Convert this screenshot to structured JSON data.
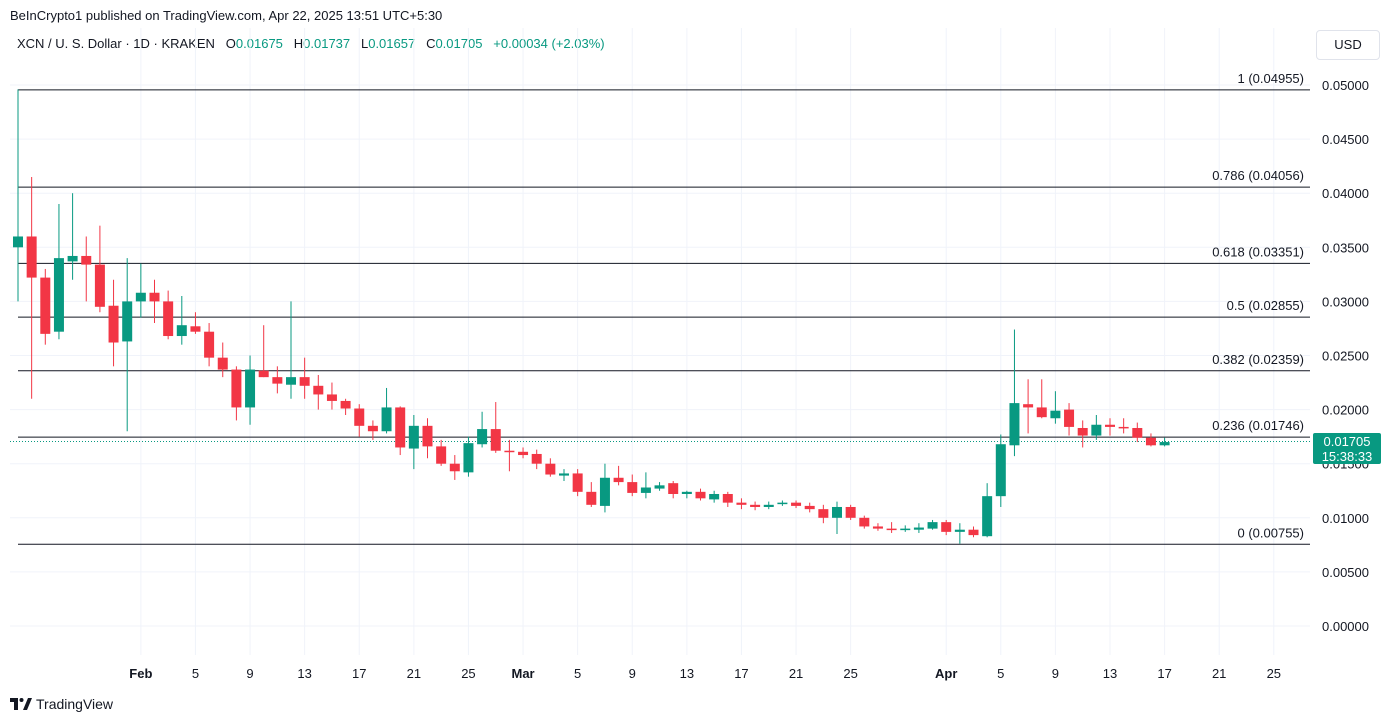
{
  "header": {
    "publisher_line": "BeInCrypto1 published on TradingView.com, Apr 22, 2025 13:51 UTC+5:30",
    "symbol": "XCN / U. S. Dollar · 1D · KRAKEN",
    "open_label": "O",
    "open": "0.01675",
    "high_label": "H",
    "high": "0.01737",
    "low_label": "L",
    "low": "0.01657",
    "close_label": "C",
    "close": "0.01705",
    "change": "+0.00034 (+2.03%)",
    "currency": "USD"
  },
  "last_price": {
    "value": "0.01705",
    "countdown": "15:38:33"
  },
  "branding": {
    "logo_icon": "tradingview-logo-icon",
    "name": "TradingView"
  },
  "colors": {
    "up": "#089981",
    "down": "#f23645",
    "line": "#131722",
    "grid": "#f0f3fa"
  },
  "chart_data": {
    "type": "candlestick",
    "ylim": [
      -0.0025,
      0.0525
    ],
    "y_ticks": [
      "0.05000",
      "0.04500",
      "0.04000",
      "0.03500",
      "0.03000",
      "0.02500",
      "0.02000",
      "0.01500",
      "0.01000",
      "0.00500",
      "0.00000"
    ],
    "y_tick_values": [
      0.05,
      0.045,
      0.04,
      0.035,
      0.03,
      0.025,
      0.02,
      0.015,
      0.01,
      0.005,
      0
    ],
    "x_ticks": [
      {
        "label": "Feb",
        "index": 9,
        "bold": true
      },
      {
        "label": "5",
        "index": 13,
        "bold": false
      },
      {
        "label": "9",
        "index": 17,
        "bold": false
      },
      {
        "label": "13",
        "index": 21,
        "bold": false
      },
      {
        "label": "17",
        "index": 25,
        "bold": false
      },
      {
        "label": "21",
        "index": 29,
        "bold": false
      },
      {
        "label": "25",
        "index": 33,
        "bold": false
      },
      {
        "label": "Mar",
        "index": 37,
        "bold": true
      },
      {
        "label": "5",
        "index": 41,
        "bold": false
      },
      {
        "label": "9",
        "index": 45,
        "bold": false
      },
      {
        "label": "13",
        "index": 49,
        "bold": false
      },
      {
        "label": "17",
        "index": 53,
        "bold": false
      },
      {
        "label": "21",
        "index": 57,
        "bold": false
      },
      {
        "label": "25",
        "index": 61,
        "bold": false
      },
      {
        "label": "Apr",
        "index": 68,
        "bold": true
      },
      {
        "label": "5",
        "index": 72,
        "bold": false
      },
      {
        "label": "9",
        "index": 76,
        "bold": false
      },
      {
        "label": "13",
        "index": 80,
        "bold": false
      },
      {
        "label": "17",
        "index": 84,
        "bold": false
      },
      {
        "label": "21",
        "index": 88,
        "bold": false
      },
      {
        "label": "25",
        "index": 92,
        "bold": false
      }
    ],
    "fib_levels": [
      {
        "label": "1 (0.04955)",
        "value": 0.04955
      },
      {
        "label": "0.786 (0.04056)",
        "value": 0.04056
      },
      {
        "label": "0.618 (0.03351)",
        "value": 0.03351
      },
      {
        "label": "0.5 (0.02855)",
        "value": 0.02855
      },
      {
        "label": "0.382 (0.02359)",
        "value": 0.02359
      },
      {
        "label": "0.236 (0.01746)",
        "value": 0.01746
      },
      {
        "label": "0 (0.00755)",
        "value": 0.00755
      }
    ],
    "last_close": 0.01705,
    "ohlc": [
      [
        0.035,
        0.0496,
        0.03,
        0.036
      ],
      [
        0.036,
        0.0415,
        0.021,
        0.0322
      ],
      [
        0.0322,
        0.033,
        0.026,
        0.027
      ],
      [
        0.0272,
        0.039,
        0.0265,
        0.034
      ],
      [
        0.0337,
        0.04,
        0.032,
        0.0342
      ],
      [
        0.0342,
        0.036,
        0.03,
        0.0334
      ],
      [
        0.0334,
        0.037,
        0.029,
        0.0295
      ],
      [
        0.0296,
        0.032,
        0.024,
        0.0262
      ],
      [
        0.0263,
        0.034,
        0.018,
        0.03
      ],
      [
        0.03,
        0.0335,
        0.0285,
        0.0308
      ],
      [
        0.0308,
        0.032,
        0.028,
        0.03
      ],
      [
        0.03,
        0.031,
        0.0265,
        0.0268
      ],
      [
        0.0268,
        0.0305,
        0.026,
        0.0278
      ],
      [
        0.0277,
        0.029,
        0.027,
        0.0272
      ],
      [
        0.0272,
        0.028,
        0.024,
        0.0248
      ],
      [
        0.0248,
        0.0262,
        0.023,
        0.0237
      ],
      [
        0.0237,
        0.024,
        0.019,
        0.0202
      ],
      [
        0.0202,
        0.025,
        0.0186,
        0.0237
      ],
      [
        0.0236,
        0.0278,
        0.023,
        0.023
      ],
      [
        0.023,
        0.024,
        0.0215,
        0.0224
      ],
      [
        0.0223,
        0.03,
        0.021,
        0.023
      ],
      [
        0.023,
        0.0248,
        0.021,
        0.0222
      ],
      [
        0.0222,
        0.0232,
        0.02,
        0.0214
      ],
      [
        0.0214,
        0.0225,
        0.02,
        0.0208
      ],
      [
        0.0208,
        0.021,
        0.0195,
        0.0201
      ],
      [
        0.0201,
        0.0205,
        0.0175,
        0.0185
      ],
      [
        0.0185,
        0.019,
        0.0172,
        0.018
      ],
      [
        0.018,
        0.022,
        0.0178,
        0.0202
      ],
      [
        0.0202,
        0.0203,
        0.0158,
        0.0165
      ],
      [
        0.0164,
        0.0195,
        0.0145,
        0.0185
      ],
      [
        0.0185,
        0.0192,
        0.0155,
        0.0166
      ],
      [
        0.0166,
        0.0172,
        0.0148,
        0.015
      ],
      [
        0.015,
        0.0158,
        0.0135,
        0.0143
      ],
      [
        0.0142,
        0.0175,
        0.0138,
        0.0169
      ],
      [
        0.0168,
        0.0198,
        0.0165,
        0.0182
      ],
      [
        0.0182,
        0.0207,
        0.016,
        0.0162
      ],
      [
        0.0162,
        0.0172,
        0.0143,
        0.0161
      ],
      [
        0.0161,
        0.0165,
        0.0155,
        0.0158
      ],
      [
        0.0159,
        0.0163,
        0.0145,
        0.015
      ],
      [
        0.015,
        0.0155,
        0.0138,
        0.014
      ],
      [
        0.0139,
        0.0145,
        0.0134,
        0.0141
      ],
      [
        0.0141,
        0.0145,
        0.012,
        0.0124
      ],
      [
        0.0124,
        0.0133,
        0.011,
        0.0112
      ],
      [
        0.0111,
        0.015,
        0.0105,
        0.0137
      ],
      [
        0.0137,
        0.0148,
        0.013,
        0.0133
      ],
      [
        0.0133,
        0.014,
        0.012,
        0.0123
      ],
      [
        0.0123,
        0.0142,
        0.0118,
        0.0128
      ],
      [
        0.0127,
        0.0133,
        0.0125,
        0.013
      ],
      [
        0.0132,
        0.0134,
        0.0118,
        0.0122
      ],
      [
        0.0122,
        0.0125,
        0.0118,
        0.0124
      ],
      [
        0.0124,
        0.0127,
        0.0116,
        0.0118
      ],
      [
        0.0117,
        0.0125,
        0.0114,
        0.0122
      ],
      [
        0.0122,
        0.0124,
        0.011,
        0.0114
      ],
      [
        0.0114,
        0.0118,
        0.0108,
        0.0112
      ],
      [
        0.0112,
        0.0115,
        0.0107,
        0.011
      ],
      [
        0.011,
        0.0115,
        0.0108,
        0.0112
      ],
      [
        0.0113,
        0.0116,
        0.0111,
        0.0114
      ],
      [
        0.0114,
        0.0116,
        0.0109,
        0.0111
      ],
      [
        0.0111,
        0.0114,
        0.0105,
        0.0108
      ],
      [
        0.0108,
        0.0112,
        0.0095,
        0.01
      ],
      [
        0.01,
        0.0115,
        0.0085,
        0.011
      ],
      [
        0.011,
        0.0112,
        0.0098,
        0.01
      ],
      [
        0.01,
        0.0102,
        0.009,
        0.0092
      ],
      [
        0.0092,
        0.0095,
        0.0088,
        0.009
      ],
      [
        0.009,
        0.0096,
        0.0086,
        0.0089
      ],
      [
        0.0089,
        0.0093,
        0.0087,
        0.009
      ],
      [
        0.0089,
        0.0095,
        0.0086,
        0.0091
      ],
      [
        0.009,
        0.0098,
        0.0089,
        0.0096
      ],
      [
        0.0096,
        0.0098,
        0.0084,
        0.0087
      ],
      [
        0.0087,
        0.0095,
        0.0076,
        0.0089
      ],
      [
        0.0089,
        0.0092,
        0.0082,
        0.0084
      ],
      [
        0.0083,
        0.0132,
        0.0082,
        0.012
      ],
      [
        0.012,
        0.0177,
        0.011,
        0.0168
      ],
      [
        0.0167,
        0.0274,
        0.0157,
        0.0206
      ],
      [
        0.0205,
        0.0228,
        0.0178,
        0.0202
      ],
      [
        0.0202,
        0.0228,
        0.0192,
        0.0193
      ],
      [
        0.0192,
        0.0217,
        0.0187,
        0.0199
      ],
      [
        0.02,
        0.0206,
        0.0176,
        0.0184
      ],
      [
        0.0183,
        0.019,
        0.0165,
        0.0176
      ],
      [
        0.0176,
        0.0195,
        0.0172,
        0.0186
      ],
      [
        0.0186,
        0.0192,
        0.0176,
        0.0184
      ],
      [
        0.0184,
        0.0192,
        0.0178,
        0.0183
      ],
      [
        0.0183,
        0.0188,
        0.017,
        0.0174
      ],
      [
        0.0174,
        0.0178,
        0.0166,
        0.0167
      ],
      [
        0.0167,
        0.0174,
        0.0166,
        0.017
      ]
    ]
  }
}
